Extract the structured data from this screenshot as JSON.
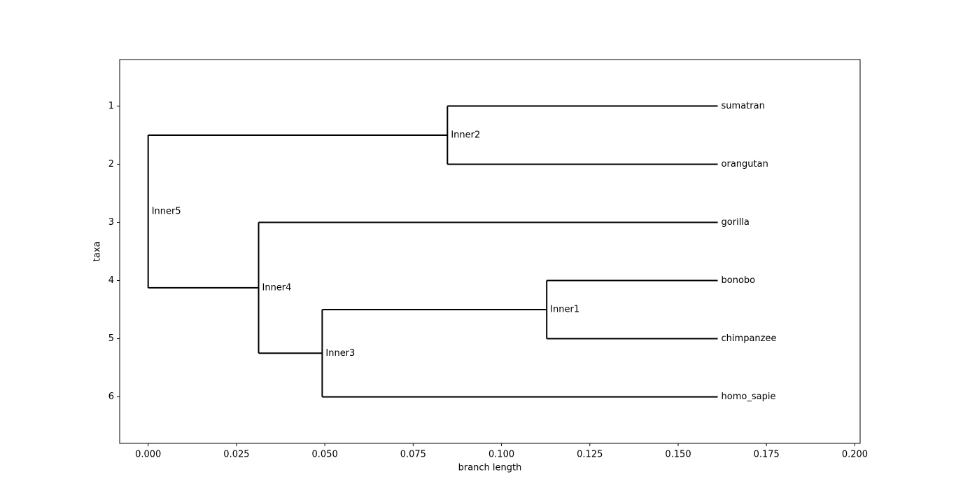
{
  "chart_data": {
    "type": "tree",
    "xlabel": "branch length",
    "ylabel": "taxa",
    "xlim": [
      -0.00806,
      0.2015
    ],
    "ylim": [
      6.8,
      0.2
    ],
    "xticks": [
      {
        "value": 0,
        "label": "0.000"
      },
      0.025,
      {
        "value": 0.05,
        "label": "0.050"
      },
      0.075,
      {
        "value": 0.1,
        "label": "0.100"
      },
      0.125,
      {
        "value": 0.15,
        "label": "0.150"
      },
      0.175,
      {
        "value": 0.2,
        "label": "0.200"
      }
    ],
    "yticks": [
      1,
      2,
      3,
      4,
      5,
      6
    ],
    "color": "#000000",
    "tree": {
      "name": "Inner5",
      "x": 0,
      "y": 2.8125,
      "children": [
        {
          "name": "Inner2",
          "x": 0.0847,
          "y": 1.5,
          "children": [
            {
              "name": "sumatran",
              "x": 0.1612,
              "y": 1
            },
            {
              "name": "orangutan",
              "x": 0.1612,
              "y": 2
            }
          ]
        },
        {
          "name": "Inner4",
          "x": 0.03126,
          "y": 4.125,
          "children": [
            {
              "name": "gorilla",
              "x": 0.1612,
              "y": 3
            },
            {
              "name": "Inner3",
              "x": 0.04926,
              "y": 5.25,
              "children": [
                {
                  "name": "Inner1",
                  "x": 0.1128,
                  "y": 4.5,
                  "children": [
                    {
                      "name": "bonobo",
                      "x": 0.1612,
                      "y": 4
                    },
                    {
                      "name": "chimpanzee",
                      "x": 0.1612,
                      "y": 5
                    }
                  ]
                },
                {
                  "name": "homo_sapie",
                  "x": 0.1612,
                  "y": 6
                }
              ]
            }
          ]
        }
      ]
    }
  }
}
